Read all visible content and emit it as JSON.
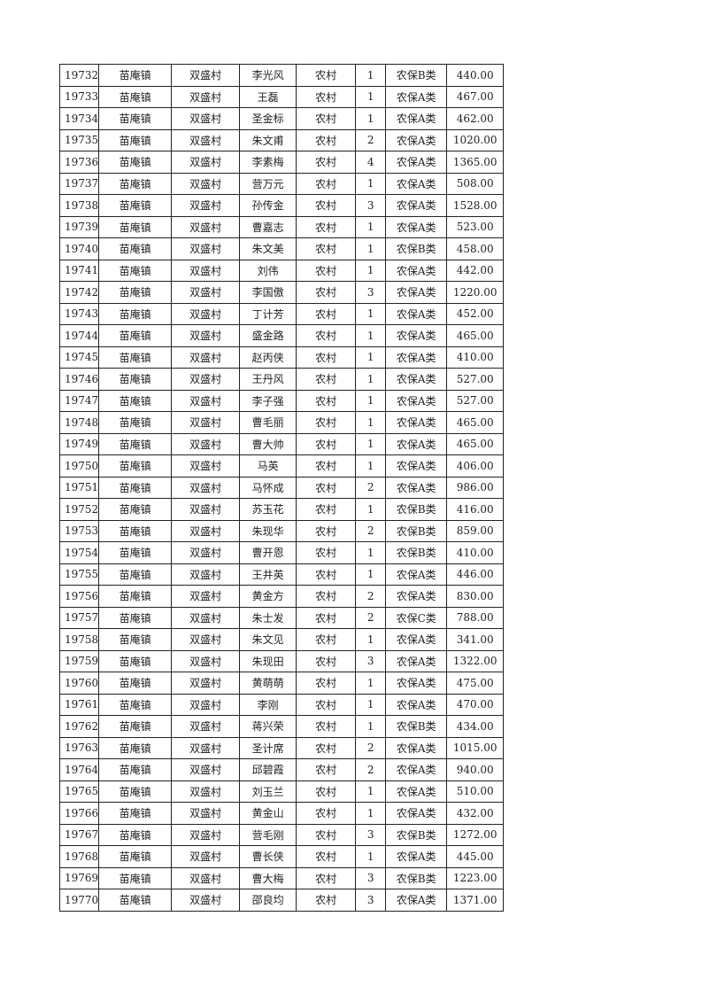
{
  "table": {
    "rows": [
      [
        "19732",
        "苗庵镇",
        "双盛村",
        "李光风",
        "农村",
        "1",
        "农保B类",
        "440.00"
      ],
      [
        "19733",
        "苗庵镇",
        "双盛村",
        "王磊",
        "农村",
        "1",
        "农保A类",
        "467.00"
      ],
      [
        "19734",
        "苗庵镇",
        "双盛村",
        "圣金标",
        "农村",
        "1",
        "农保A类",
        "462.00"
      ],
      [
        "19735",
        "苗庵镇",
        "双盛村",
        "朱文甫",
        "农村",
        "2",
        "农保A类",
        "1020.00"
      ],
      [
        "19736",
        "苗庵镇",
        "双盛村",
        "李素梅",
        "农村",
        "4",
        "农保A类",
        "1365.00"
      ],
      [
        "19737",
        "苗庵镇",
        "双盛村",
        "营万元",
        "农村",
        "1",
        "农保A类",
        "508.00"
      ],
      [
        "19738",
        "苗庵镇",
        "双盛村",
        "孙传金",
        "农村",
        "3",
        "农保A类",
        "1528.00"
      ],
      [
        "19739",
        "苗庵镇",
        "双盛村",
        "曹嘉志",
        "农村",
        "1",
        "农保A类",
        "523.00"
      ],
      [
        "19740",
        "苗庵镇",
        "双盛村",
        "朱文美",
        "农村",
        "1",
        "农保B类",
        "458.00"
      ],
      [
        "19741",
        "苗庵镇",
        "双盛村",
        "刘伟",
        "农村",
        "1",
        "农保A类",
        "442.00"
      ],
      [
        "19742",
        "苗庵镇",
        "双盛村",
        "李国傲",
        "农村",
        "3",
        "农保A类",
        "1220.00"
      ],
      [
        "19743",
        "苗庵镇",
        "双盛村",
        "丁计芳",
        "农村",
        "1",
        "农保A类",
        "452.00"
      ],
      [
        "19744",
        "苗庵镇",
        "双盛村",
        "盛金路",
        "农村",
        "1",
        "农保A类",
        "465.00"
      ],
      [
        "19745",
        "苗庵镇",
        "双盛村",
        "赵丙侠",
        "农村",
        "1",
        "农保A类",
        "410.00"
      ],
      [
        "19746",
        "苗庵镇",
        "双盛村",
        "王丹风",
        "农村",
        "1",
        "农保A类",
        "527.00"
      ],
      [
        "19747",
        "苗庵镇",
        "双盛村",
        "李子强",
        "农村",
        "1",
        "农保A类",
        "527.00"
      ],
      [
        "19748",
        "苗庵镇",
        "双盛村",
        "曹毛丽",
        "农村",
        "1",
        "农保A类",
        "465.00"
      ],
      [
        "19749",
        "苗庵镇",
        "双盛村",
        "曹大帅",
        "农村",
        "1",
        "农保A类",
        "465.00"
      ],
      [
        "19750",
        "苗庵镇",
        "双盛村",
        "马英",
        "农村",
        "1",
        "农保A类",
        "406.00"
      ],
      [
        "19751",
        "苗庵镇",
        "双盛村",
        "马怀成",
        "农村",
        "2",
        "农保A类",
        "986.00"
      ],
      [
        "19752",
        "苗庵镇",
        "双盛村",
        "苏玉花",
        "农村",
        "1",
        "农保B类",
        "416.00"
      ],
      [
        "19753",
        "苗庵镇",
        "双盛村",
        "朱现华",
        "农村",
        "2",
        "农保B类",
        "859.00"
      ],
      [
        "19754",
        "苗庵镇",
        "双盛村",
        "曹开恩",
        "农村",
        "1",
        "农保B类",
        "410.00"
      ],
      [
        "19755",
        "苗庵镇",
        "双盛村",
        "王井英",
        "农村",
        "1",
        "农保A类",
        "446.00"
      ],
      [
        "19756",
        "苗庵镇",
        "双盛村",
        "黄金方",
        "农村",
        "2",
        "农保A类",
        "830.00"
      ],
      [
        "19757",
        "苗庵镇",
        "双盛村",
        "朱士发",
        "农村",
        "2",
        "农保C类",
        "788.00"
      ],
      [
        "19758",
        "苗庵镇",
        "双盛村",
        "朱文见",
        "农村",
        "1",
        "农保A类",
        "341.00"
      ],
      [
        "19759",
        "苗庵镇",
        "双盛村",
        "朱现田",
        "农村",
        "3",
        "农保A类",
        "1322.00"
      ],
      [
        "19760",
        "苗庵镇",
        "双盛村",
        "黄萌萌",
        "农村",
        "1",
        "农保A类",
        "475.00"
      ],
      [
        "19761",
        "苗庵镇",
        "双盛村",
        "李刚",
        "农村",
        "1",
        "农保A类",
        "470.00"
      ],
      [
        "19762",
        "苗庵镇",
        "双盛村",
        "蒋兴荣",
        "农村",
        "1",
        "农保B类",
        "434.00"
      ],
      [
        "19763",
        "苗庵镇",
        "双盛村",
        "圣计席",
        "农村",
        "2",
        "农保A类",
        "1015.00"
      ],
      [
        "19764",
        "苗庵镇",
        "双盛村",
        "邱碧霞",
        "农村",
        "2",
        "农保A类",
        "940.00"
      ],
      [
        "19765",
        "苗庵镇",
        "双盛村",
        "刘玉兰",
        "农村",
        "1",
        "农保A类",
        "510.00"
      ],
      [
        "19766",
        "苗庵镇",
        "双盛村",
        "黄金山",
        "农村",
        "1",
        "农保A类",
        "432.00"
      ],
      [
        "19767",
        "苗庵镇",
        "双盛村",
        "营毛刚",
        "农村",
        "3",
        "农保B类",
        "1272.00"
      ],
      [
        "19768",
        "苗庵镇",
        "双盛村",
        "曹长侠",
        "农村",
        "1",
        "农保A类",
        "445.00"
      ],
      [
        "19769",
        "苗庵镇",
        "双盛村",
        "曹大梅",
        "农村",
        "3",
        "农保B类",
        "1223.00"
      ],
      [
        "19770",
        "苗庵镇",
        "双盛村",
        "邵良均",
        "农村",
        "3",
        "农保A类",
        "1371.00"
      ]
    ]
  }
}
